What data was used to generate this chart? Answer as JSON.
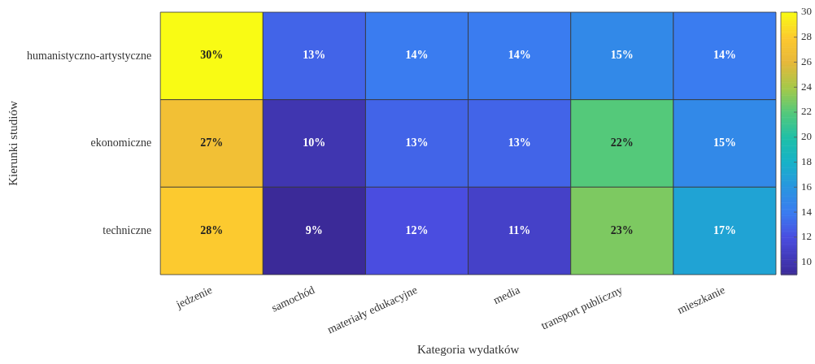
{
  "chart_data": {
    "type": "heatmap",
    "xlabel": "Kategoria wydatków",
    "ylabel": "Kierunki studiów",
    "categories": [
      "jedzenie",
      "samochód",
      "materiały edukacyjne",
      "media",
      "transport publiczny",
      "mieszkanie"
    ],
    "y_categories": [
      "humanistyczno-artystyczne",
      "ekonomiczne",
      "techniczne"
    ],
    "cells": [
      [
        30,
        13,
        14,
        14,
        15,
        14
      ],
      [
        27,
        10,
        13,
        13,
        22,
        15
      ],
      [
        28,
        9,
        12,
        11,
        23,
        17
      ]
    ],
    "cell_labels": [
      [
        "30%",
        "13%",
        "14%",
        "14%",
        "15%",
        "14%"
      ],
      [
        "27%",
        "10%",
        "13%",
        "13%",
        "22%",
        "15%"
      ],
      [
        "28%",
        "9%",
        "12%",
        "11%",
        "23%",
        "17%"
      ]
    ],
    "clim": [
      9,
      30
    ],
    "cticks": [
      10,
      12,
      14,
      16,
      18,
      20,
      22,
      24,
      26,
      28,
      30
    ]
  }
}
